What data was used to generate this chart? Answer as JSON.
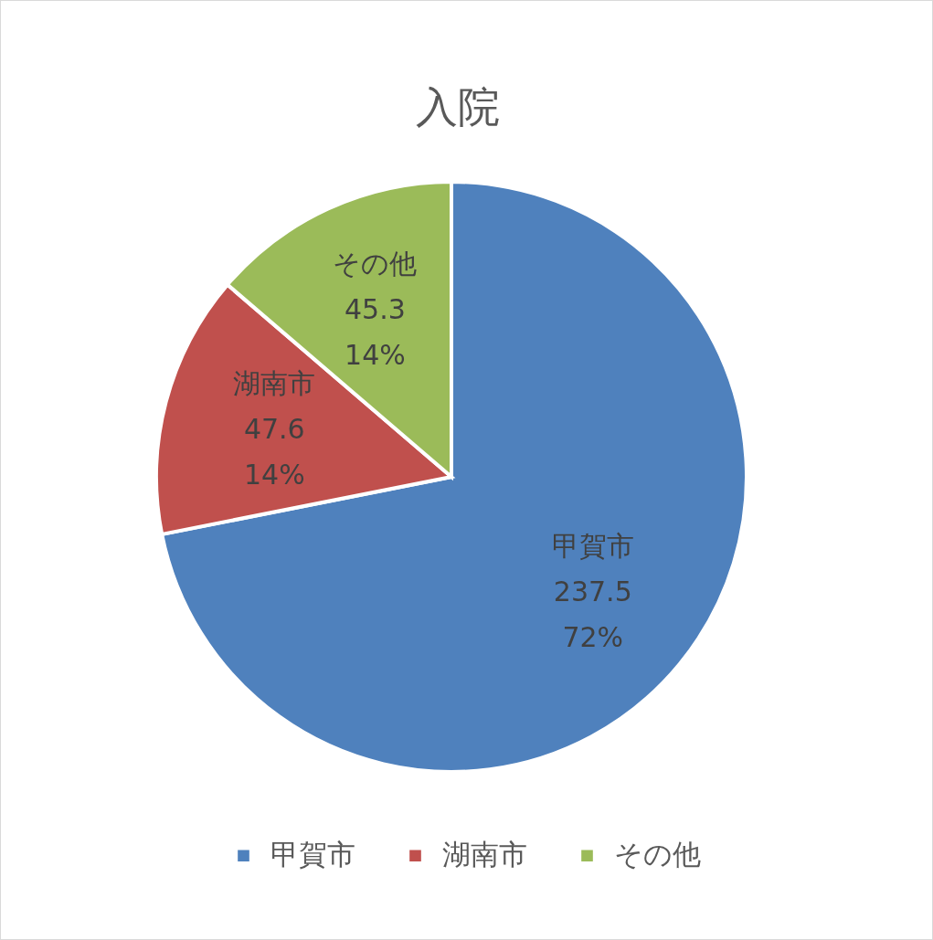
{
  "chart_data": {
    "type": "pie",
    "title": "入院",
    "categories": [
      "甲賀市",
      "湖南市",
      "その他"
    ],
    "values": [
      237.5,
      47.6,
      45.3
    ],
    "colors": [
      "#4f81bd",
      "#c0504d",
      "#9bbb59"
    ],
    "value_labels": [
      "237.5\n72%",
      "47.6\n14%",
      "45.3\n14%"
    ],
    "legend": "bottom"
  }
}
